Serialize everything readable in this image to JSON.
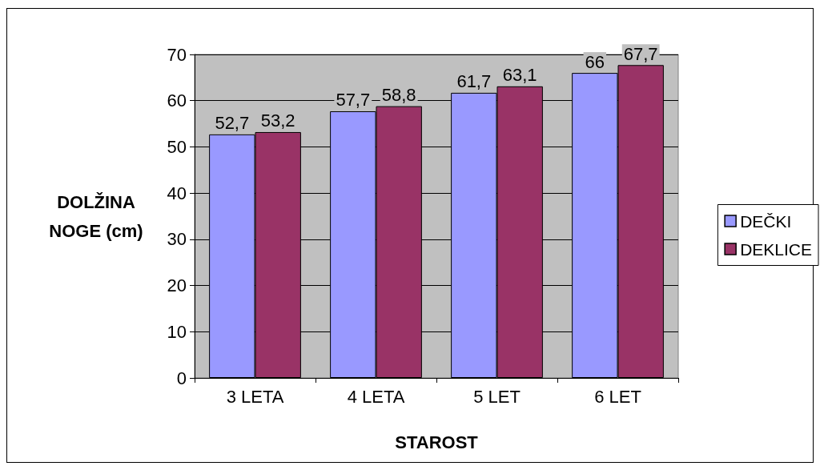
{
  "chart_data": {
    "type": "bar",
    "categories": [
      "3 LETA",
      "4 LETA",
      "5 LET",
      "6 LET"
    ],
    "series": [
      {
        "name": "DEČKI",
        "color": "#9999ff",
        "values": [
          52.7,
          57.7,
          61.7,
          66
        ],
        "value_labels": [
          "52,7",
          "57,7",
          "61,7",
          "66"
        ]
      },
      {
        "name": "DEKLICE",
        "color": "#993366",
        "values": [
          53.2,
          58.8,
          63.1,
          67.7
        ],
        "value_labels": [
          "53,2",
          "58,8",
          "63,1",
          "67,7"
        ]
      }
    ],
    "xlabel": "STAROST",
    "ylabel": "DOLŽINA NOGE (cm)",
    "ylim": [
      0,
      70
    ],
    "yticks": [
      0,
      10,
      20,
      30,
      40,
      50,
      60,
      70
    ],
    "grid": "y",
    "legend": "right"
  }
}
